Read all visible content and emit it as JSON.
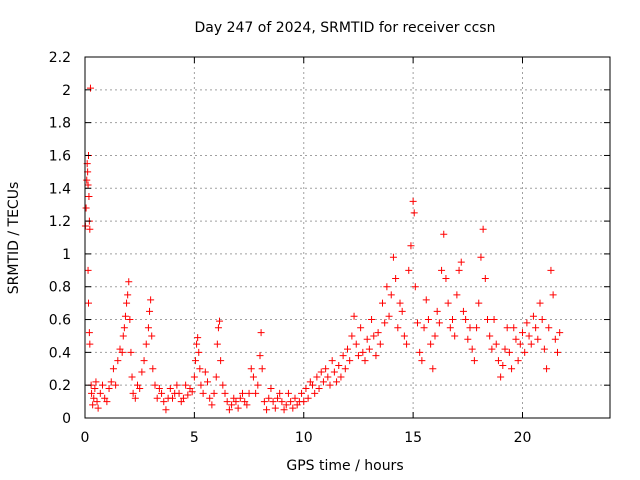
{
  "chart_data": {
    "type": "scatter",
    "title": "Day 247 of 2024, SRMTID for receiver ccsn",
    "xlabel": "GPS time / hours",
    "ylabel": "SRMTID / TECUs",
    "xlim": [
      0,
      24
    ],
    "ylim": [
      0,
      2.2
    ],
    "xticks": [
      0,
      5,
      10,
      15,
      20
    ],
    "xtick_labels": [
      "0",
      "5",
      "10",
      "15",
      "20"
    ],
    "yticks": [
      0,
      0.2,
      0.4,
      0.6,
      0.8,
      1,
      1.2,
      1.4,
      1.6,
      1.8,
      2,
      2.2
    ],
    "ytick_labels": [
      "0",
      "0.2",
      "0.4",
      "0.6",
      "0.8",
      "1",
      "1.2",
      "1.4",
      "1.6",
      "1.8",
      "2",
      "2.2"
    ],
    "grid": true,
    "marker": "plus",
    "marker_color": "#ff0000",
    "series": [
      {
        "name": "SRMTID",
        "points": [
          [
            0.02,
            1.17
          ],
          [
            0.05,
            1.28
          ],
          [
            0.08,
            1.45
          ],
          [
            0.1,
            1.55
          ],
          [
            0.12,
            1.5
          ],
          [
            0.14,
            1.42
          ],
          [
            0.16,
            1.6
          ],
          [
            0.18,
            1.35
          ],
          [
            0.2,
            1.2
          ],
          [
            0.22,
            1.15
          ],
          [
            0.14,
            0.9
          ],
          [
            0.16,
            0.7
          ],
          [
            0.2,
            0.52
          ],
          [
            0.22,
            0.45
          ],
          [
            0.25,
            2.01
          ],
          [
            0.28,
            0.2
          ],
          [
            0.3,
            0.15
          ],
          [
            0.35,
            0.08
          ],
          [
            0.4,
            0.12
          ],
          [
            0.45,
            0.18
          ],
          [
            0.5,
            0.22
          ],
          [
            0.55,
            0.1
          ],
          [
            0.6,
            0.06
          ],
          [
            0.7,
            0.15
          ],
          [
            0.8,
            0.2
          ],
          [
            0.9,
            0.12
          ],
          [
            1.0,
            0.1
          ],
          [
            1.1,
            0.18
          ],
          [
            1.2,
            0.22
          ],
          [
            1.3,
            0.3
          ],
          [
            1.4,
            0.2
          ],
          [
            1.5,
            0.35
          ],
          [
            1.6,
            0.42
          ],
          [
            1.7,
            0.4
          ],
          [
            1.75,
            0.5
          ],
          [
            1.8,
            0.55
          ],
          [
            1.85,
            0.62
          ],
          [
            1.9,
            0.7
          ],
          [
            1.95,
            0.75
          ],
          [
            2.0,
            0.83
          ],
          [
            2.05,
            0.6
          ],
          [
            2.1,
            0.4
          ],
          [
            2.15,
            0.25
          ],
          [
            2.2,
            0.15
          ],
          [
            2.3,
            0.12
          ],
          [
            2.4,
            0.2
          ],
          [
            2.5,
            0.18
          ],
          [
            2.6,
            0.28
          ],
          [
            2.7,
            0.35
          ],
          [
            2.8,
            0.45
          ],
          [
            2.9,
            0.55
          ],
          [
            2.95,
            0.65
          ],
          [
            3.0,
            0.72
          ],
          [
            3.05,
            0.5
          ],
          [
            3.1,
            0.3
          ],
          [
            3.2,
            0.2
          ],
          [
            3.3,
            0.12
          ],
          [
            3.4,
            0.18
          ],
          [
            3.5,
            0.15
          ],
          [
            3.6,
            0.1
          ],
          [
            3.7,
            0.05
          ],
          [
            3.8,
            0.12
          ],
          [
            3.9,
            0.18
          ],
          [
            4.0,
            0.12
          ],
          [
            4.1,
            0.15
          ],
          [
            4.2,
            0.2
          ],
          [
            4.3,
            0.15
          ],
          [
            4.4,
            0.1
          ],
          [
            4.5,
            0.12
          ],
          [
            4.6,
            0.2
          ],
          [
            4.7,
            0.14
          ],
          [
            4.8,
            0.18
          ],
          [
            4.9,
            0.16
          ],
          [
            5.0,
            0.25
          ],
          [
            5.05,
            0.35
          ],
          [
            5.1,
            0.45
          ],
          [
            5.15,
            0.49
          ],
          [
            5.2,
            0.4
          ],
          [
            5.25,
            0.3
          ],
          [
            5.3,
            0.2
          ],
          [
            5.4,
            0.15
          ],
          [
            5.5,
            0.28
          ],
          [
            5.6,
            0.22
          ],
          [
            5.7,
            0.12
          ],
          [
            5.8,
            0.08
          ],
          [
            5.9,
            0.15
          ],
          [
            6.0,
            0.25
          ],
          [
            6.05,
            0.45
          ],
          [
            6.1,
            0.55
          ],
          [
            6.15,
            0.59
          ],
          [
            6.2,
            0.35
          ],
          [
            6.3,
            0.2
          ],
          [
            6.4,
            0.15
          ],
          [
            6.5,
            0.1
          ],
          [
            6.6,
            0.05
          ],
          [
            6.7,
            0.08
          ],
          [
            6.8,
            0.12
          ],
          [
            6.9,
            0.1
          ],
          [
            7.0,
            0.06
          ],
          [
            7.1,
            0.12
          ],
          [
            7.2,
            0.15
          ],
          [
            7.3,
            0.1
          ],
          [
            7.4,
            0.08
          ],
          [
            7.5,
            0.15
          ],
          [
            7.6,
            0.3
          ],
          [
            7.7,
            0.25
          ],
          [
            7.8,
            0.15
          ],
          [
            7.9,
            0.2
          ],
          [
            8.0,
            0.38
          ],
          [
            8.05,
            0.52
          ],
          [
            8.1,
            0.3
          ],
          [
            8.2,
            0.1
          ],
          [
            8.3,
            0.05
          ],
          [
            8.4,
            0.12
          ],
          [
            8.5,
            0.18
          ],
          [
            8.6,
            0.1
          ],
          [
            8.7,
            0.06
          ],
          [
            8.8,
            0.12
          ],
          [
            8.9,
            0.15
          ],
          [
            9.0,
            0.1
          ],
          [
            9.1,
            0.05
          ],
          [
            9.2,
            0.08
          ],
          [
            9.3,
            0.15
          ],
          [
            9.4,
            0.1
          ],
          [
            9.5,
            0.06
          ],
          [
            9.6,
            0.12
          ],
          [
            9.7,
            0.08
          ],
          [
            9.8,
            0.1
          ],
          [
            9.9,
            0.15
          ],
          [
            10.0,
            0.1
          ],
          [
            10.1,
            0.18
          ],
          [
            10.2,
            0.12
          ],
          [
            10.3,
            0.22
          ],
          [
            10.4,
            0.2
          ],
          [
            10.5,
            0.15
          ],
          [
            10.6,
            0.25
          ],
          [
            10.7,
            0.18
          ],
          [
            10.8,
            0.28
          ],
          [
            10.9,
            0.22
          ],
          [
            11.0,
            0.3
          ],
          [
            11.1,
            0.25
          ],
          [
            11.2,
            0.2
          ],
          [
            11.3,
            0.35
          ],
          [
            11.4,
            0.28
          ],
          [
            11.5,
            0.22
          ],
          [
            11.6,
            0.32
          ],
          [
            11.7,
            0.25
          ],
          [
            11.8,
            0.38
          ],
          [
            11.9,
            0.3
          ],
          [
            12.0,
            0.42
          ],
          [
            12.1,
            0.35
          ],
          [
            12.2,
            0.5
          ],
          [
            12.3,
            0.62
          ],
          [
            12.4,
            0.45
          ],
          [
            12.5,
            0.38
          ],
          [
            12.6,
            0.55
          ],
          [
            12.7,
            0.4
          ],
          [
            12.8,
            0.35
          ],
          [
            12.9,
            0.48
          ],
          [
            13.0,
            0.42
          ],
          [
            13.1,
            0.6
          ],
          [
            13.2,
            0.5
          ],
          [
            13.3,
            0.38
          ],
          [
            13.4,
            0.52
          ],
          [
            13.5,
            0.45
          ],
          [
            13.6,
            0.7
          ],
          [
            13.7,
            0.58
          ],
          [
            13.8,
            0.8
          ],
          [
            13.9,
            0.62
          ],
          [
            14.0,
            0.75
          ],
          [
            14.1,
            0.98
          ],
          [
            14.2,
            0.85
          ],
          [
            14.3,
            0.55
          ],
          [
            14.4,
            0.7
          ],
          [
            14.5,
            0.65
          ],
          [
            14.6,
            0.5
          ],
          [
            14.7,
            0.45
          ],
          [
            14.8,
            0.9
          ],
          [
            14.9,
            1.05
          ],
          [
            15.0,
            1.32
          ],
          [
            15.05,
            1.25
          ],
          [
            15.1,
            0.8
          ],
          [
            15.2,
            0.58
          ],
          [
            15.3,
            0.4
          ],
          [
            15.4,
            0.35
          ],
          [
            15.5,
            0.55
          ],
          [
            15.6,
            0.72
          ],
          [
            15.7,
            0.6
          ],
          [
            15.8,
            0.45
          ],
          [
            15.9,
            0.3
          ],
          [
            16.0,
            0.5
          ],
          [
            16.1,
            0.65
          ],
          [
            16.2,
            0.58
          ],
          [
            16.3,
            0.9
          ],
          [
            16.4,
            1.12
          ],
          [
            16.5,
            0.85
          ],
          [
            16.6,
            0.7
          ],
          [
            16.7,
            0.55
          ],
          [
            16.8,
            0.6
          ],
          [
            16.9,
            0.5
          ],
          [
            17.0,
            0.75
          ],
          [
            17.1,
            0.9
          ],
          [
            17.2,
            0.95
          ],
          [
            17.3,
            0.65
          ],
          [
            17.4,
            0.6
          ],
          [
            17.5,
            0.48
          ],
          [
            17.6,
            0.55
          ],
          [
            17.7,
            0.42
          ],
          [
            17.8,
            0.35
          ],
          [
            17.9,
            0.55
          ],
          [
            18.0,
            0.7
          ],
          [
            18.1,
            0.98
          ],
          [
            18.2,
            1.15
          ],
          [
            18.3,
            0.85
          ],
          [
            18.4,
            0.6
          ],
          [
            18.5,
            0.5
          ],
          [
            18.6,
            0.42
          ],
          [
            18.7,
            0.6
          ],
          [
            18.8,
            0.45
          ],
          [
            18.9,
            0.35
          ],
          [
            19.0,
            0.25
          ],
          [
            19.1,
            0.32
          ],
          [
            19.2,
            0.42
          ],
          [
            19.3,
            0.55
          ],
          [
            19.4,
            0.4
          ],
          [
            19.5,
            0.3
          ],
          [
            19.6,
            0.55
          ],
          [
            19.7,
            0.48
          ],
          [
            19.8,
            0.35
          ],
          [
            19.9,
            0.45
          ],
          [
            20.0,
            0.52
          ],
          [
            20.1,
            0.4
          ],
          [
            20.2,
            0.58
          ],
          [
            20.3,
            0.5
          ],
          [
            20.4,
            0.45
          ],
          [
            20.5,
            0.62
          ],
          [
            20.6,
            0.55
          ],
          [
            20.7,
            0.48
          ],
          [
            20.8,
            0.7
          ],
          [
            20.9,
            0.6
          ],
          [
            21.0,
            0.42
          ],
          [
            21.1,
            0.3
          ],
          [
            21.2,
            0.55
          ],
          [
            21.3,
            0.9
          ],
          [
            21.4,
            0.75
          ],
          [
            21.5,
            0.48
          ],
          [
            21.6,
            0.4
          ],
          [
            21.7,
            0.52
          ]
        ]
      }
    ]
  }
}
